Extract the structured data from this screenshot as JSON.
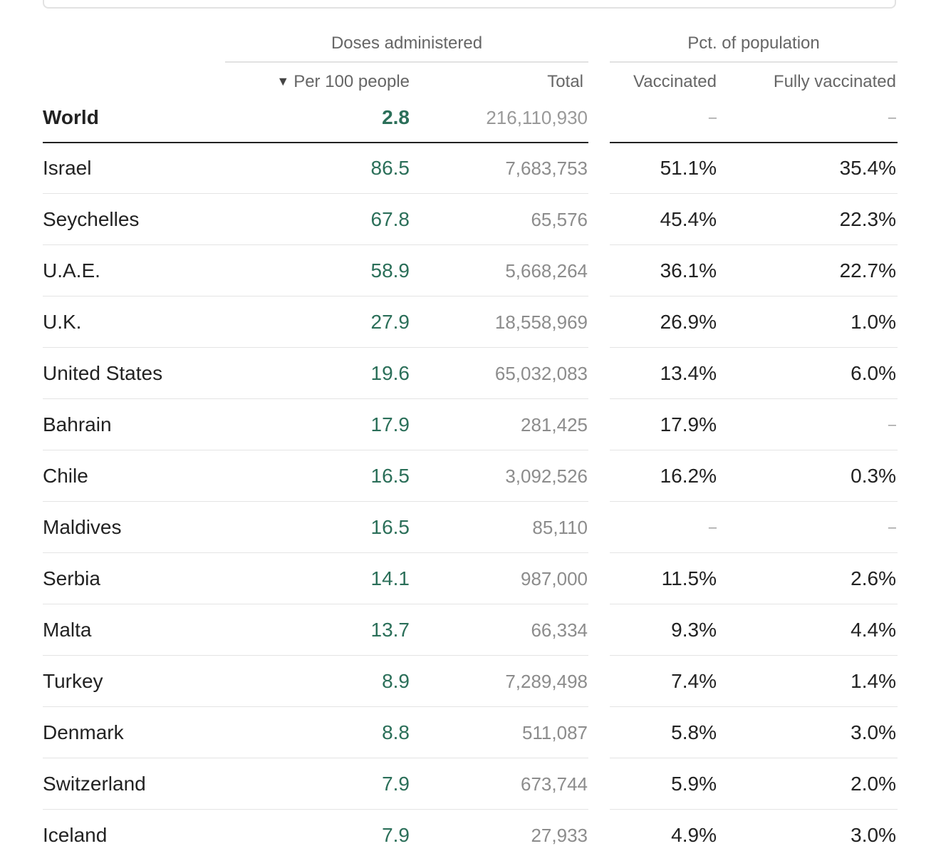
{
  "headers": {
    "group_doses": "Doses administered",
    "group_pct": "Pct. of population",
    "sort_icon": "▼",
    "col_per100": "Per 100 people",
    "col_total": "Total",
    "col_vaccinated": "Vaccinated",
    "col_fully": "Fully vaccinated"
  },
  "world": {
    "country": "World",
    "per100": "2.8",
    "total": "216,110,930",
    "vaccinated": "–",
    "fully": "–"
  },
  "rows": [
    {
      "country": "Israel",
      "per100": "86.5",
      "total": "7,683,753",
      "vaccinated": "51.1%",
      "fully": "35.4%"
    },
    {
      "country": "Seychelles",
      "per100": "67.8",
      "total": "65,576",
      "vaccinated": "45.4%",
      "fully": "22.3%"
    },
    {
      "country": "U.A.E.",
      "per100": "58.9",
      "total": "5,668,264",
      "vaccinated": "36.1%",
      "fully": "22.7%"
    },
    {
      "country": "U.K.",
      "per100": "27.9",
      "total": "18,558,969",
      "vaccinated": "26.9%",
      "fully": "1.0%"
    },
    {
      "country": "United States",
      "per100": "19.6",
      "total": "65,032,083",
      "vaccinated": "13.4%",
      "fully": "6.0%"
    },
    {
      "country": "Bahrain",
      "per100": "17.9",
      "total": "281,425",
      "vaccinated": "17.9%",
      "fully": "–"
    },
    {
      "country": "Chile",
      "per100": "16.5",
      "total": "3,092,526",
      "vaccinated": "16.2%",
      "fully": "0.3%"
    },
    {
      "country": "Maldives",
      "per100": "16.5",
      "total": "85,110",
      "vaccinated": "–",
      "fully": "–"
    },
    {
      "country": "Serbia",
      "per100": "14.1",
      "total": "987,000",
      "vaccinated": "11.5%",
      "fully": "2.6%"
    },
    {
      "country": "Malta",
      "per100": "13.7",
      "total": "66,334",
      "vaccinated": "9.3%",
      "fully": "4.4%"
    },
    {
      "country": "Turkey",
      "per100": "8.9",
      "total": "7,289,498",
      "vaccinated": "7.4%",
      "fully": "1.4%"
    },
    {
      "country": "Denmark",
      "per100": "8.8",
      "total": "511,087",
      "vaccinated": "5.8%",
      "fully": "3.0%"
    },
    {
      "country": "Switzerland",
      "per100": "7.9",
      "total": "673,744",
      "vaccinated": "5.9%",
      "fully": "2.0%"
    },
    {
      "country": "Iceland",
      "per100": "7.9",
      "total": "27,933",
      "vaccinated": "4.9%",
      "fully": "3.0%"
    }
  ],
  "colors": {
    "per100": "#2b6f59",
    "text": "#222222",
    "muted": "#8c8c8c",
    "header": "#666666"
  }
}
